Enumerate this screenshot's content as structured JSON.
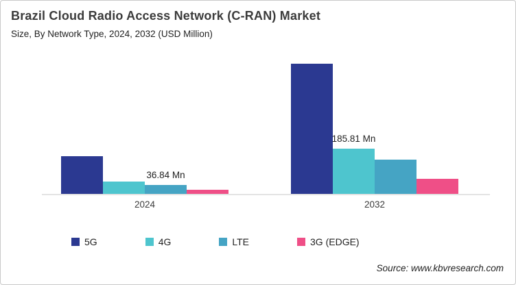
{
  "header": {
    "title": "Brazil Cloud Radio Access Network (C-RAN) Market",
    "subtitle": "Size, By Network Type, 2024, 2032 (USD Million)"
  },
  "footer": {
    "source": "Source: www.kbvresearch.com"
  },
  "chart_data": {
    "type": "bar",
    "title": "Brazil Cloud Radio Access Network (C-RAN) Market",
    "subtitle": "Size, By Network Type, 2024, 2032 (USD Million)",
    "units": "USD Million",
    "categories": [
      "2024",
      "2032"
    ],
    "series": [
      {
        "name": "5G",
        "color": "#2B3991",
        "values": [
          155,
          535
        ]
      },
      {
        "name": "4G",
        "color": "#4EC5CE",
        "values": [
          51,
          185.81
        ]
      },
      {
        "name": "LTE",
        "color": "#45A4C4",
        "values": [
          36.84,
          141
        ]
      },
      {
        "name": "3G (EDGE)",
        "color": "#EF4F87",
        "values": [
          17,
          62
        ]
      }
    ],
    "data_labels": [
      {
        "series": "LTE",
        "category": "2024",
        "text": "36.84 Mn"
      },
      {
        "series": "4G",
        "category": "2032",
        "text": "185.81 Mn"
      }
    ],
    "ylim": [
      0,
      600
    ],
    "grid": false,
    "y_axis_shown": false,
    "legend_position": "bottom",
    "axis_line_color": "#E3E3E3"
  }
}
